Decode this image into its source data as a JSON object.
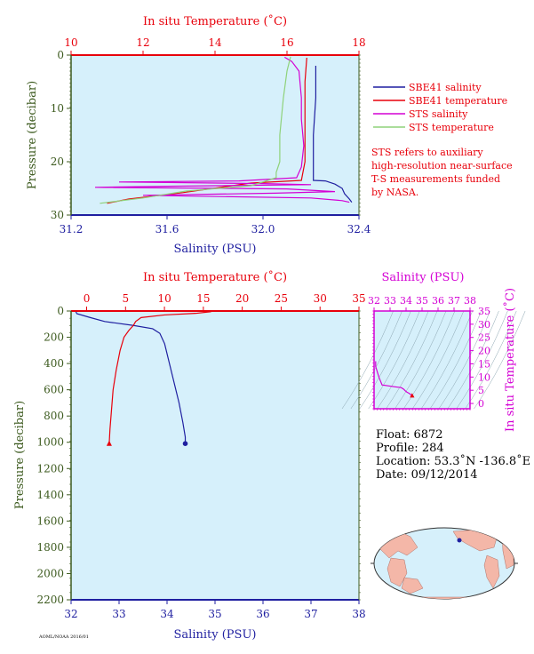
{
  "colors": {
    "plot_bg": "#d6f0fb",
    "salinity_blue": "#1f1fa0",
    "temperature_red": "#e8000b",
    "sts_salinity": "#d400d4",
    "sts_temperature": "#8fd27a",
    "pressure_axis": "#3c5a1e",
    "ts_diagram_axis": "#d400d4",
    "land": "#f4b7a8",
    "ocean": "#d6f0fb"
  },
  "top_chart": {
    "top_axis_title": "In situ Temperature (˚C)",
    "left_axis_title": "Pressure (decibar)",
    "bottom_axis_title": "Salinity (PSU)"
  },
  "bottom_chart": {
    "top_axis_title": "In situ Temperature (˚C)",
    "left_axis_title": "Pressure (decibar)",
    "bottom_axis_title": "Salinity (PSU)"
  },
  "ts_diagram": {
    "top_axis_title": "Salinity (PSU)",
    "right_axis_title": "In situ Temperature (˚C)"
  },
  "legend": {
    "items": [
      "SBE41 salinity",
      "SBE41 temperature",
      "STS salinity",
      "STS temperature"
    ],
    "note_lines": [
      "STS refers to auxiliary",
      "high-resolution near-surface",
      "T-S measurements funded",
      "by NASA."
    ]
  },
  "float_info": {
    "float_line": "Float:  6872",
    "profile_line": "Profile:  284",
    "location_line": "Location:  53.3˚N  -136.8˚E",
    "date_line": "Date:  09/12/2014"
  },
  "footer_code": "AOML/NOAA 2016/01",
  "map": {
    "marker_label": ""
  },
  "chart_data": [
    {
      "type": "line",
      "title": "",
      "xlabel": "Salinity (PSU)",
      "x2label": "In situ Temperature (˚C)",
      "ylabel": "Pressure (decibar)",
      "xlim": [
        31.2,
        32.4
      ],
      "x2lim": [
        10,
        18
      ],
      "ylim": [
        0,
        30
      ],
      "y_inverted": true,
      "x_ticks": [
        "31.2",
        "31.6",
        "32.0",
        "32.4"
      ],
      "x2_ticks": [
        "10",
        "12",
        "14",
        "16",
        "18"
      ],
      "y_ticks": [
        "0",
        "10",
        "20",
        "30"
      ],
      "series": [
        {
          "name": "SBE41 salinity",
          "axis": "salinity",
          "color": "#1f1fa0",
          "points": [
            [
              32.22,
              2
            ],
            [
              32.22,
              8
            ],
            [
              32.21,
              15
            ],
            [
              32.21,
              20
            ],
            [
              32.21,
              23.5
            ],
            [
              32.26,
              23.6
            ],
            [
              32.3,
              24.2
            ],
            [
              32.33,
              25
            ],
            [
              32.34,
              26
            ],
            [
              32.36,
              27
            ],
            [
              32.37,
              27.6
            ]
          ]
        },
        {
          "name": "SBE41 temperature",
          "axis": "temperature",
          "color": "#e8000b",
          "points": [
            [
              16.55,
              0.5
            ],
            [
              16.5,
              5
            ],
            [
              16.5,
              20
            ],
            [
              16.4,
              23.5
            ],
            [
              15.0,
              24.0
            ],
            [
              13.1,
              25.8
            ],
            [
              11.6,
              27.0
            ],
            [
              11.0,
              27.8
            ]
          ]
        },
        {
          "name": "STS salinity",
          "axis": "salinity",
          "color": "#d400d4",
          "points": [
            [
              32.09,
              0.4
            ],
            [
              32.12,
              1.2
            ],
            [
              32.15,
              3
            ],
            [
              32.16,
              8
            ],
            [
              32.16,
              12
            ],
            [
              32.17,
              17
            ],
            [
              32.16,
              21
            ],
            [
              32.14,
              23
            ],
            [
              31.9,
              23.6
            ],
            [
              31.4,
              23.8
            ],
            [
              32.0,
              24.1
            ],
            [
              32.2,
              24.3
            ],
            [
              31.6,
              24.6
            ],
            [
              31.3,
              24.8
            ],
            [
              32.1,
              25.1
            ],
            [
              32.3,
              25.6
            ],
            [
              32.05,
              25.9
            ],
            [
              31.5,
              26.3
            ],
            [
              32.2,
              26.8
            ],
            [
              32.33,
              27.3
            ],
            [
              32.36,
              27.6
            ]
          ]
        },
        {
          "name": "STS temperature",
          "axis": "temperature",
          "color": "#8fd27a",
          "points": [
            [
              16.1,
              0.3
            ],
            [
              16.0,
              3
            ],
            [
              15.9,
              8
            ],
            [
              15.8,
              15
            ],
            [
              15.8,
              20
            ],
            [
              15.7,
              22
            ],
            [
              15.7,
              23
            ],
            [
              15.0,
              24.5
            ],
            [
              13.2,
              25.5
            ],
            [
              12.0,
              26.8
            ],
            [
              10.8,
              27.8
            ]
          ]
        }
      ]
    },
    {
      "type": "line",
      "title": "",
      "xlabel": "Salinity (PSU)",
      "x2label": "In situ Temperature (˚C)",
      "ylabel": "Pressure (decibar)",
      "xlim": [
        32,
        38
      ],
      "x2lim": [
        -2,
        35
      ],
      "ylim": [
        0,
        2200
      ],
      "y_inverted": true,
      "x_ticks": [
        "32",
        "33",
        "34",
        "35",
        "36",
        "37",
        "38"
      ],
      "x2_ticks": [
        "0",
        "5",
        "10",
        "15",
        "20",
        "25",
        "30",
        "35"
      ],
      "y_ticks": [
        "0",
        "200",
        "400",
        "600",
        "800",
        "1000",
        "1200",
        "1400",
        "1600",
        "1800",
        "2000",
        "2200"
      ],
      "series": [
        {
          "name": "SBE41 salinity",
          "axis": "salinity",
          "color": "#1f1fa0",
          "points": [
            [
              32.1,
              5
            ],
            [
              32.12,
              20
            ],
            [
              32.4,
              50
            ],
            [
              32.7,
              80
            ],
            [
              33.3,
              110
            ],
            [
              33.7,
              135
            ],
            [
              33.85,
              170
            ],
            [
              33.95,
              250
            ],
            [
              34.05,
              400
            ],
            [
              34.15,
              550
            ],
            [
              34.25,
              700
            ],
            [
              34.33,
              850
            ],
            [
              34.38,
              960
            ],
            [
              34.38,
              1010
            ]
          ],
          "end_marker": "circle"
        },
        {
          "name": "SBE41 temperature",
          "axis": "temperature",
          "color": "#e8000b",
          "points": [
            [
              16.0,
              5
            ],
            [
              14.0,
              18
            ],
            [
              10.0,
              30
            ],
            [
              7.0,
              50
            ],
            [
              6.3,
              80
            ],
            [
              6.0,
              110
            ],
            [
              5.4,
              150
            ],
            [
              4.8,
              200
            ],
            [
              4.3,
              300
            ],
            [
              3.8,
              450
            ],
            [
              3.4,
              600
            ],
            [
              3.2,
              750
            ],
            [
              3.0,
              900
            ],
            [
              2.9,
              1010
            ]
          ],
          "end_marker": "triangle"
        }
      ]
    },
    {
      "type": "line",
      "title": "",
      "xlabel": "Salinity (PSU)",
      "ylabel": "In situ Temperature (˚C)",
      "xlim": [
        32,
        38
      ],
      "ylim": [
        -2,
        35
      ],
      "x_ticks": [
        "32",
        "33",
        "34",
        "35",
        "36",
        "37",
        "38"
      ],
      "y_ticks": [
        "0",
        "5",
        "10",
        "15",
        "20",
        "25",
        "30",
        "35"
      ],
      "series": [
        {
          "name": "STS salinity",
          "axis": "ts",
          "color": "#d400d4",
          "points": [
            [
              32.1,
              16.0
            ],
            [
              32.1,
              14.0
            ],
            [
              32.3,
              10.0
            ],
            [
              32.5,
              7.0
            ],
            [
              33.3,
              6.3
            ],
            [
              33.7,
              6.0
            ],
            [
              33.85,
              5.4
            ],
            [
              33.95,
              4.8
            ],
            [
              34.05,
              4.3
            ],
            [
              34.2,
              3.8
            ],
            [
              34.38,
              2.9
            ]
          ],
          "end_marker": "triangle"
        }
      ]
    }
  ]
}
